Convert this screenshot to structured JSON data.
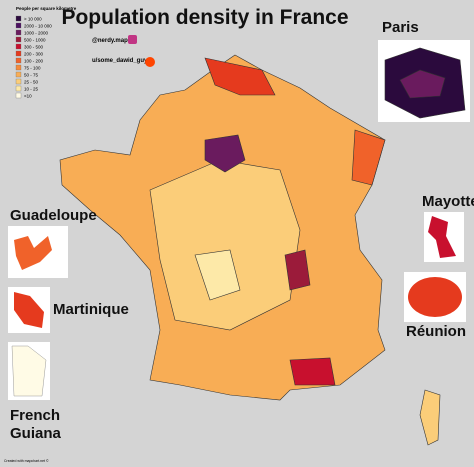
{
  "title": "Population density in France",
  "legend": {
    "title": "People per square kilometre",
    "items": [
      {
        "label": "> 10 000",
        "color": "#2b0a3d"
      },
      {
        "label": "2000 - 10 000",
        "color": "#4b1060"
      },
      {
        "label": "1000 - 2000",
        "color": "#6a1b5e"
      },
      {
        "label": "500 - 1000",
        "color": "#9b1b3a"
      },
      {
        "label": "300 - 500",
        "color": "#c8102e"
      },
      {
        "label": "200 - 300",
        "color": "#e53a1e"
      },
      {
        "label": "100 - 200",
        "color": "#f0622a"
      },
      {
        "label": "75 - 100",
        "color": "#f58a3a"
      },
      {
        "label": "50 - 75",
        "color": "#f8ad55"
      },
      {
        "label": "25 - 50",
        "color": "#fbcd79"
      },
      {
        "label": "10 - 25",
        "color": "#fde9a8"
      },
      {
        "label": "<10",
        "color": "#fffbe6"
      }
    ]
  },
  "credits": {
    "instagram": "@nerdy.maps",
    "reddit": "u/some_dawid_guy"
  },
  "insets": {
    "paris": "Paris",
    "guadeloupe": "Guadeloupe",
    "martinique": "Martinique",
    "mayotte": "Mayotte",
    "reunion": "Réunion",
    "guiana": [
      "French",
      "Guiana"
    ]
  },
  "footer": "Created with mapchart.net ©"
}
